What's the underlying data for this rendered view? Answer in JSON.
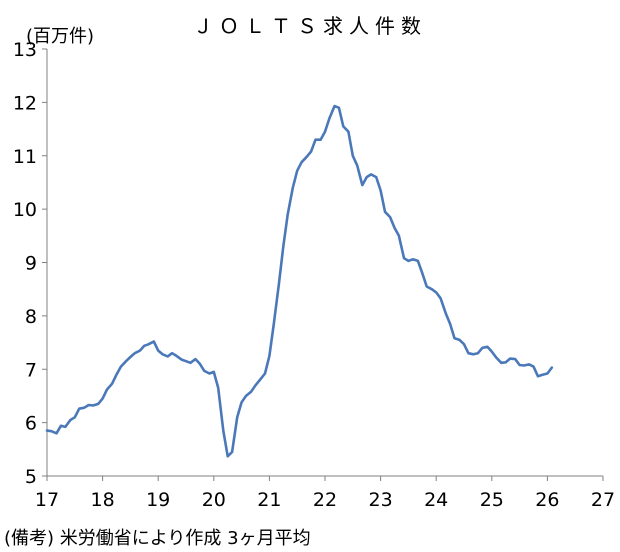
{
  "chart_data": {
    "type": "line",
    "title": "ＪＯＬＴＳ求人件数",
    "ylabel": "(百万件)",
    "xlabel": "",
    "note": "(備考) 米労働省により作成 3ヶ月平均",
    "xlim": [
      17,
      27
    ],
    "ylim": [
      5,
      13
    ],
    "xticks": [
      "17",
      "18",
      "19",
      "20",
      "21",
      "22",
      "23",
      "24",
      "25",
      "26",
      "27"
    ],
    "yticks": [
      "5",
      "6",
      "7",
      "8",
      "9",
      "10",
      "11",
      "12",
      "13"
    ],
    "grid": false,
    "legend": "none",
    "line_color": "#4a78b8",
    "series": [
      {
        "x": [
          17.0,
          17.08,
          17.17,
          17.25,
          17.33,
          17.42,
          17.5,
          17.58,
          17.67,
          17.75,
          17.83,
          17.92,
          18.0,
          18.08,
          18.17,
          18.25,
          18.33,
          18.42,
          18.5,
          18.58,
          18.67,
          18.75,
          18.83,
          18.92,
          19.0,
          19.08,
          19.17,
          19.25,
          19.33,
          19.42,
          19.5,
          19.58,
          19.67,
          19.75,
          19.83,
          19.92,
          20.0,
          20.08,
          20.17,
          20.25,
          20.33,
          20.42,
          20.5,
          20.58,
          20.67,
          20.75,
          20.83,
          20.92,
          21.0,
          21.08,
          21.17,
          21.25,
          21.33,
          21.42,
          21.5,
          21.58,
          21.67,
          21.75,
          21.83,
          21.92,
          22.0,
          22.08,
          22.17,
          22.25,
          22.33,
          22.42,
          22.5,
          22.58,
          22.67,
          22.75,
          22.83,
          22.92,
          23.0,
          23.08,
          23.17,
          23.25,
          23.33,
          23.42,
          23.5,
          23.58,
          23.67,
          23.75,
          23.83,
          23.92,
          24.0,
          24.08,
          24.17,
          24.25,
          24.33,
          24.42,
          24.5,
          24.58,
          24.67,
          24.75,
          24.83,
          24.92,
          25.0,
          25.08,
          25.17,
          25.25,
          25.33,
          25.42,
          25.5,
          25.58,
          25.67,
          25.75,
          25.83,
          25.92,
          26.0,
          26.08
        ],
        "y": [
          5.85,
          5.84,
          5.8,
          5.94,
          5.92,
          6.05,
          6.1,
          6.26,
          6.28,
          6.33,
          6.32,
          6.35,
          6.45,
          6.62,
          6.73,
          6.9,
          7.05,
          7.15,
          7.23,
          7.3,
          7.35,
          7.44,
          7.47,
          7.52,
          7.35,
          7.28,
          7.24,
          7.3,
          7.25,
          7.18,
          7.15,
          7.12,
          7.19,
          7.1,
          6.97,
          6.92,
          6.95,
          6.65,
          5.85,
          5.37,
          5.45,
          6.1,
          6.38,
          6.5,
          6.58,
          6.7,
          6.8,
          6.92,
          7.25,
          7.85,
          8.6,
          9.3,
          9.9,
          10.4,
          10.72,
          10.88,
          10.98,
          11.08,
          11.3,
          11.3,
          11.45,
          11.7,
          11.93,
          11.9,
          11.55,
          11.45,
          11.0,
          10.82,
          10.45,
          10.6,
          10.65,
          10.6,
          10.35,
          9.95,
          9.85,
          9.65,
          9.5,
          9.08,
          9.03,
          9.06,
          9.03,
          8.8,
          8.55,
          8.5,
          8.44,
          8.33,
          8.05,
          7.85,
          7.58,
          7.55,
          7.47,
          7.3,
          7.28,
          7.3,
          7.4,
          7.42,
          7.33,
          7.22,
          7.12,
          7.13,
          7.2,
          7.19,
          7.08,
          7.07,
          7.09,
          7.05,
          6.87,
          6.9,
          6.92,
          7.03
        ]
      }
    ]
  }
}
